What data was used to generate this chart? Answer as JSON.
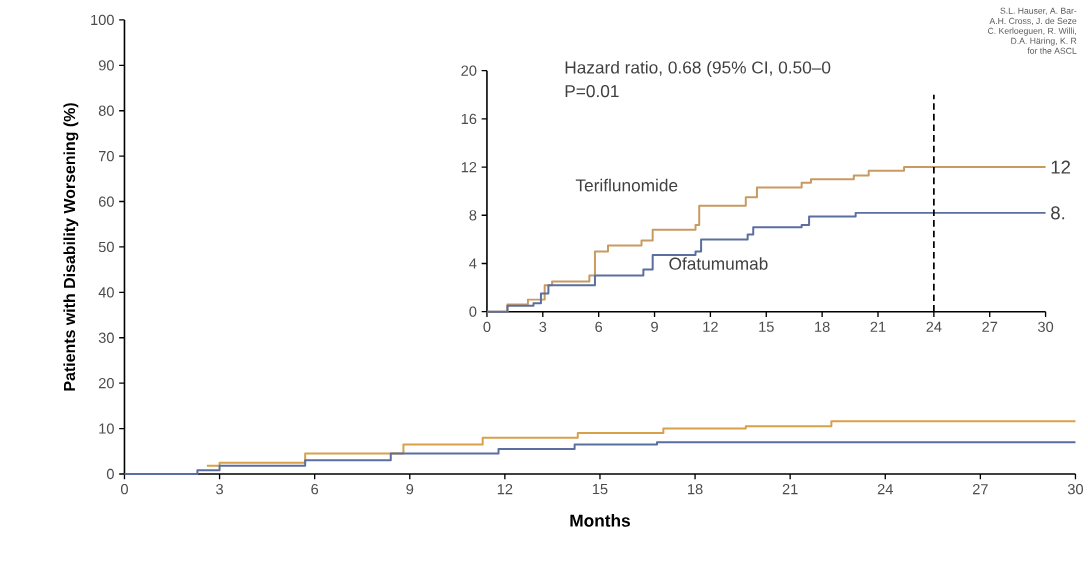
{
  "chart_data": [
    {
      "type": "step",
      "xlabel": "Months",
      "ylabel": "Patients with Disability Worsening (%)",
      "xlim": [
        0,
        30
      ],
      "ylim": [
        0,
        100
      ],
      "xticks": [
        0,
        3,
        6,
        9,
        12,
        15,
        18,
        21,
        24,
        27,
        30
      ],
      "yticks": [
        0,
        10,
        20,
        30,
        40,
        50,
        60,
        70,
        80,
        90,
        100
      ],
      "series": [
        {
          "color": "#d9a04a",
          "x": [
            2.6,
            3,
            5.7,
            8.8,
            11.3,
            14.3,
            17,
            19.6,
            22.3,
            30
          ],
          "values": [
            1.8,
            2.5,
            4.5,
            6.5,
            8,
            9,
            10,
            10.5,
            11.6,
            11.6
          ]
        },
        {
          "color": "#5a6fa0",
          "x": [
            0,
            2.3,
            3,
            5.7,
            8.4,
            11.8,
            14.2,
            16.8,
            30
          ],
          "values": [
            0,
            0.8,
            1.8,
            3,
            4.5,
            5.5,
            6.5,
            7,
            7
          ]
        }
      ],
      "annotations": [
        "S.L. Hauser, A. Bar-",
        "A.H. Cross, J. de Seze",
        "C. Kerloeguen, R. Willi,",
        "D.A. Häring, K. R",
        "for the ASCL"
      ]
    },
    {
      "type": "step",
      "xlim": [
        0,
        30
      ],
      "ylim": [
        0,
        20
      ],
      "xticks": [
        0,
        3,
        6,
        9,
        12,
        15,
        18,
        21,
        24,
        27,
        30
      ],
      "yticks": [
        0,
        4,
        8,
        12,
        16,
        20
      ],
      "series": [
        {
          "name": "Teriflunomide",
          "color": "#c89a60",
          "x": [
            0,
            1.1,
            2.2,
            3.1,
            3.5,
            5.5,
            5.8,
            6.5,
            8.3,
            8.9,
            11.2,
            11.4,
            13.9,
            14.5,
            16.9,
            17.4,
            19.7,
            20.5,
            22.4,
            30
          ],
          "values": [
            0,
            0.6,
            1.0,
            2.2,
            2.5,
            3.0,
            5.0,
            5.5,
            5.9,
            6.8,
            7.2,
            8.8,
            9.5,
            10.3,
            10.7,
            11.0,
            11.3,
            11.7,
            12.0,
            12.0
          ]
        },
        {
          "name": "Ofatumumab",
          "color": "#5a6fa0",
          "x": [
            0,
            1.1,
            2.5,
            2.9,
            3.3,
            5.8,
            8.4,
            8.9,
            11.2,
            11.5,
            14.0,
            14.3,
            16.9,
            17.3,
            19.8,
            30
          ],
          "values": [
            0,
            0.5,
            0.7,
            1.5,
            2.2,
            3.0,
            3.5,
            4.7,
            5.0,
            6.0,
            6.4,
            7.0,
            7.2,
            7.9,
            8.2,
            8.2
          ]
        }
      ],
      "ref_lines": [
        {
          "axis": "x",
          "value": 24,
          "line_style": "dashed",
          "color": "#000000"
        }
      ],
      "annotations": [
        "Hazard ratio, 0.68 (95% CI, 0.50–0",
        "P=0.01",
        {
          "text": "12",
          "x": 30,
          "y": 12
        },
        {
          "text": "8.",
          "x": 30,
          "y": 8.2
        }
      ]
    }
  ]
}
